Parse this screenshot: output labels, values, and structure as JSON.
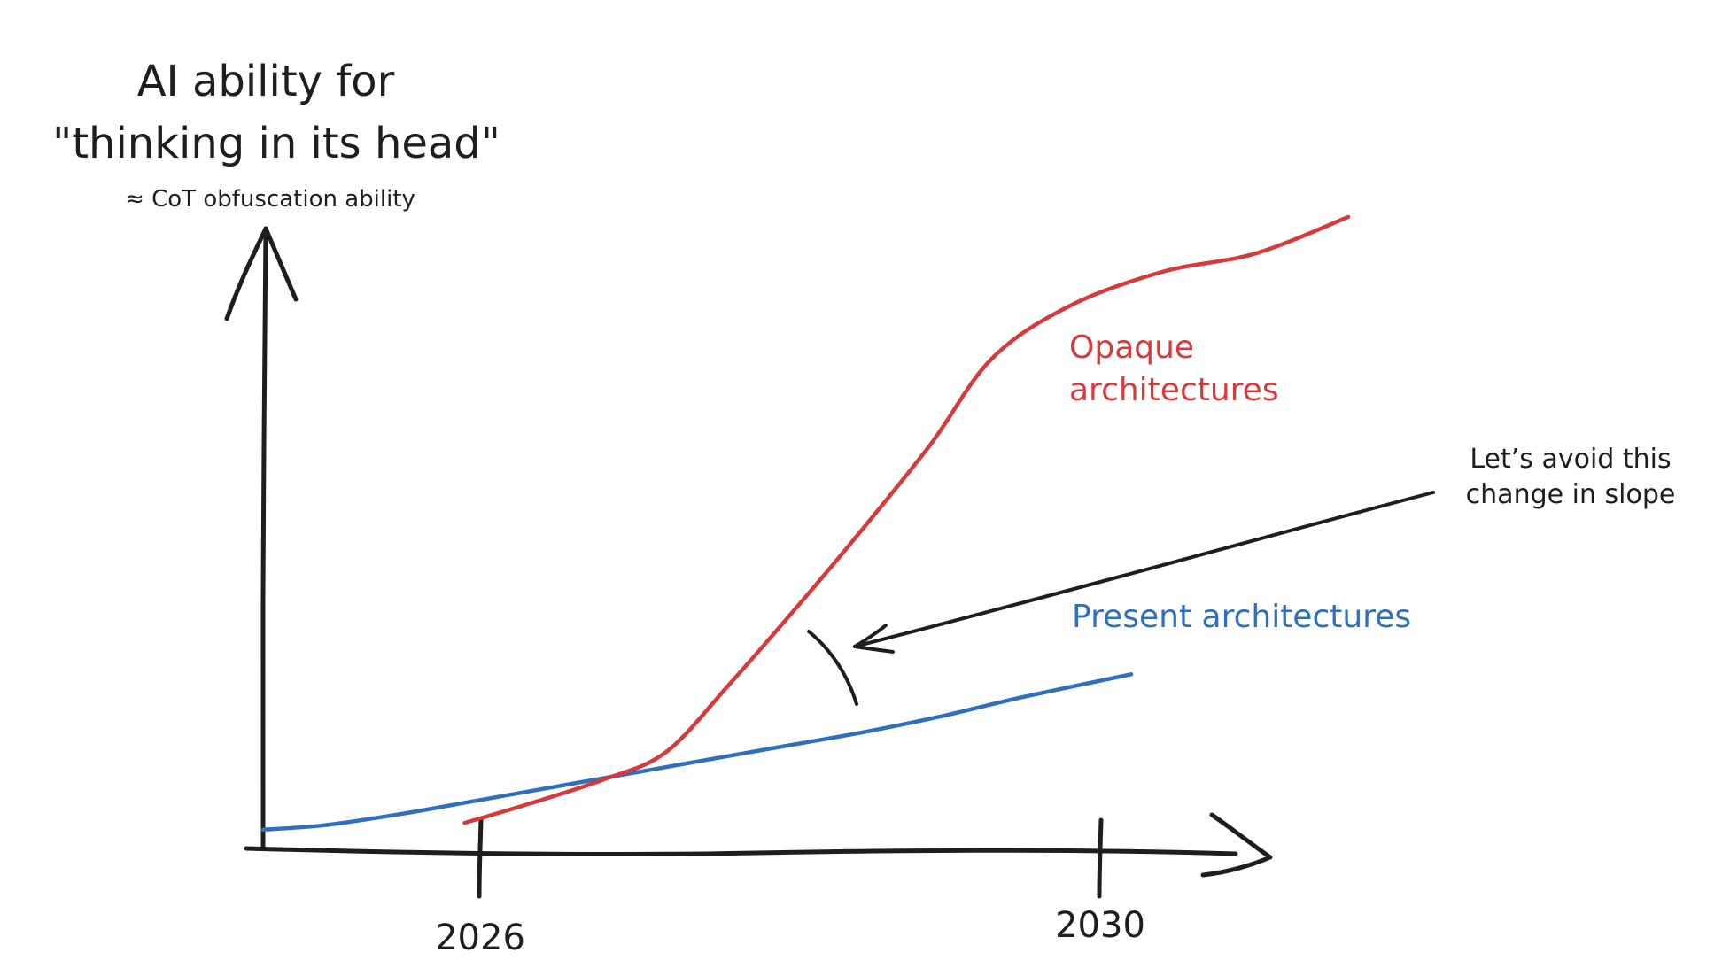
{
  "chart_data": {
    "type": "line",
    "title_lines": [
      "AI ability for",
      "\"thinking in its head\""
    ],
    "subtitle": "≈ CoT obfuscation ability",
    "xlabel": "",
    "ylabel": "",
    "x_ticks": [
      "2026",
      "2030"
    ],
    "grid": false,
    "legend": "none",
    "annotation_lines": [
      "Let’s avoid this",
      "change in slope"
    ],
    "colors": {
      "opaque": "#d63a3a",
      "present": "#2f6fbd",
      "ink": "#1e1e1e"
    },
    "series": [
      {
        "name": "Present architectures",
        "color": "#2f6fbd",
        "x": [
          2024.6,
          2025,
          2025.5,
          2026,
          2026.5,
          2027,
          2027.5,
          2028,
          2028.5,
          2029,
          2029.5,
          2030.2
        ],
        "y": [
          0.2,
          0.4,
          0.9,
          1.5,
          2.1,
          2.7,
          3.3,
          3.9,
          4.5,
          5.2,
          6.0,
          7.0
        ]
      },
      {
        "name": "Opaque architectures",
        "color": "#d63a3a",
        "x": [
          2025.9,
          2026.3,
          2026.8,
          2027.2,
          2027.6,
          2028.0,
          2028.4,
          2028.9,
          2029.3,
          2029.8,
          2030.4,
          2031.0,
          2031.6
        ],
        "y": [
          0.5,
          1.3,
          2.4,
          3.6,
          6.5,
          9.6,
          12.8,
          17.0,
          20.8,
          23.1,
          24.6,
          25.4,
          27.0
        ]
      }
    ]
  }
}
